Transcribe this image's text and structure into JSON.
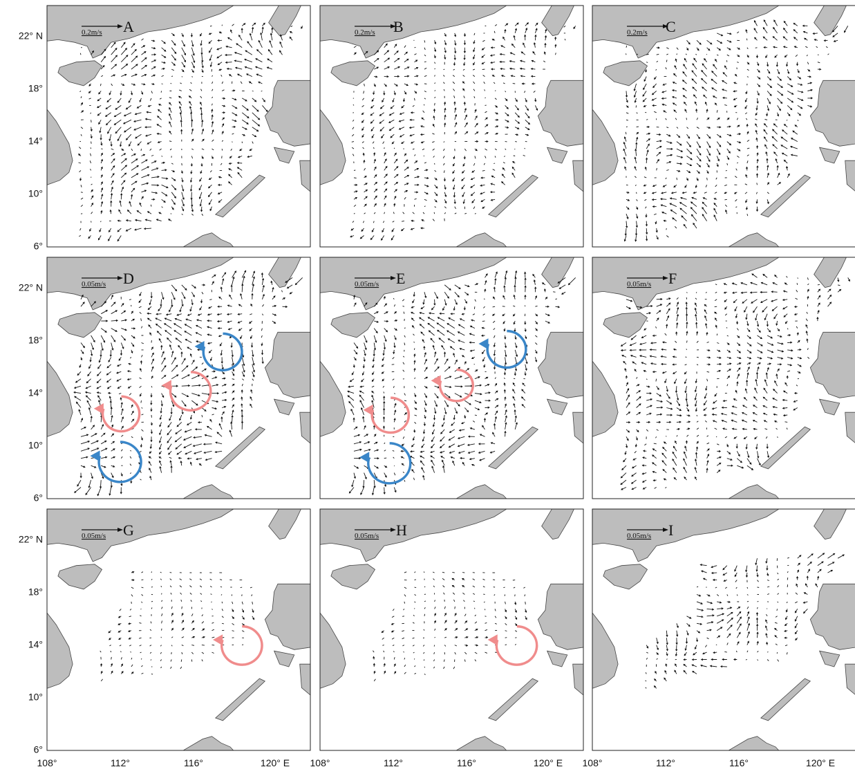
{
  "y_tick_labels": [
    "22° N",
    "18°",
    "14°",
    "10°",
    "6°"
  ],
  "x_tick_labels": [
    "108°",
    "112°",
    "116°",
    "120° E"
  ],
  "panels": [
    {
      "label": "A",
      "scale": "0.2m/s"
    },
    {
      "label": "B",
      "scale": "0.2m/s"
    },
    {
      "label": "C",
      "scale": "0.2m/s"
    },
    {
      "label": "D",
      "scale": "0.05m/s"
    },
    {
      "label": "E",
      "scale": "0.05m/s"
    },
    {
      "label": "F",
      "scale": "0.05m/s"
    },
    {
      "label": "G",
      "scale": "0.05m/s"
    },
    {
      "label": "H",
      "scale": "0.05m/s"
    },
    {
      "label": "I",
      "scale": "0.05m/s"
    }
  ]
}
